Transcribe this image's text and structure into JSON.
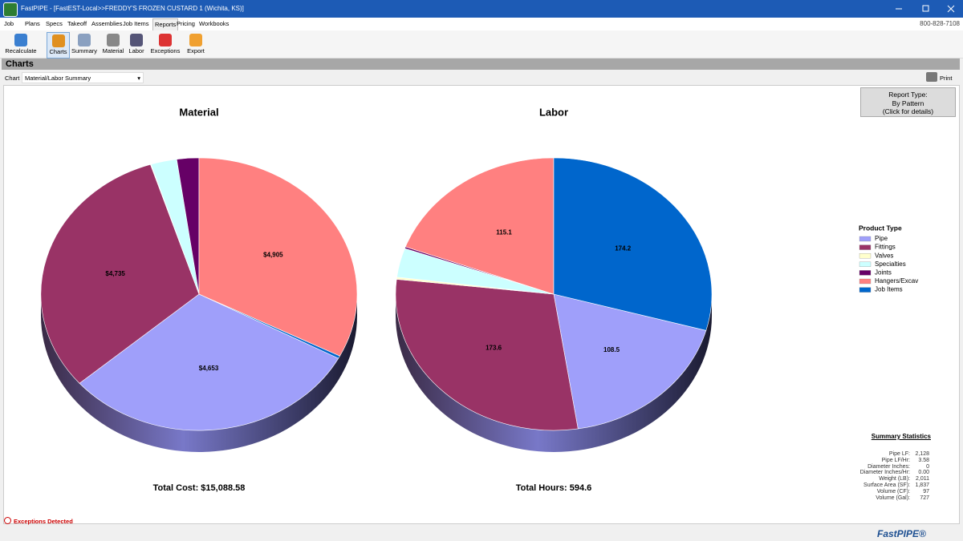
{
  "window": {
    "title": "FastPIPE - [FastEST-Local>>FREDDY'S FROZEN CUSTARD 1 (Wichita, KS)]"
  },
  "menu": {
    "tabs": [
      "Job",
      "Plans",
      "Specs",
      "Takeoff",
      "Assemblies",
      "Job Items",
      "Reports",
      "Pricing",
      "Workbooks"
    ],
    "active": 6,
    "phone": "800-828-7108"
  },
  "toolbar": {
    "buttons": [
      "Recalculate",
      "Charts",
      "Summary",
      "Material",
      "Labor",
      "Exceptions",
      "Export"
    ],
    "active": 1
  },
  "section": {
    "title": "Charts"
  },
  "chart_selector": {
    "label": "Chart",
    "value": "Material/Labor Summary",
    "print": "Print"
  },
  "report_type": {
    "lines": [
      "Report Type:",
      "By Pattern",
      "(Click for details)"
    ]
  },
  "legend": {
    "title": "Product Type",
    "position": "right"
  },
  "chart_data": [
    {
      "type": "pie",
      "title": "Material",
      "categories": [
        "Pipe",
        "Fittings",
        "Valves",
        "Specialties",
        "Joints",
        "Hangers/Excav",
        "Job Items"
      ],
      "colors": [
        "#9f9ffa",
        "#993366",
        "#ffffcc",
        "#ccffff",
        "#660066",
        "#ff8080",
        "#0066cc"
      ],
      "values": [
        4653,
        4735,
        10,
        400,
        340,
        4905,
        45
      ],
      "value_labels": [
        "$4,653",
        "$4,735",
        null,
        null,
        null,
        "$4,905",
        null
      ],
      "total_label": "Total Cost: $15,088.58"
    },
    {
      "type": "pie",
      "title": "Labor",
      "categories": [
        "Pipe",
        "Fittings",
        "Valves",
        "Specialties",
        "Joints",
        "Hangers/Excav",
        "Job Items"
      ],
      "colors": [
        "#9f9ffa",
        "#993366",
        "#ffffcc",
        "#ccffff",
        "#660066",
        "#ff8080",
        "#0066cc"
      ],
      "values": [
        108.5,
        173.6,
        1.5,
        20.5,
        1.2,
        115.1,
        174.2
      ],
      "value_labels": [
        "108.5",
        "173.6",
        null,
        null,
        null,
        "115.1",
        "174.2"
      ],
      "total_label": "Total Hours: 594.6"
    }
  ],
  "summary_statistics": {
    "title": "Summary Statistics",
    "rows": [
      [
        "Pipe LF:",
        "2,128"
      ],
      [
        "Pipe LF/Hr:",
        "3.58"
      ],
      [
        "Diameter Inches:",
        "0"
      ],
      [
        "Diameter Inches/Hr:",
        "0.00"
      ],
      [
        "Weight (LB):",
        "2,011"
      ],
      [
        "Surface Area (SF):",
        "1,837"
      ],
      [
        "Volume (CF):",
        "97"
      ],
      [
        "Volume (Gal):",
        "727"
      ]
    ]
  },
  "status": {
    "exceptions": "Exceptions Detected"
  },
  "logo": {
    "text": "FastPIPE®"
  }
}
